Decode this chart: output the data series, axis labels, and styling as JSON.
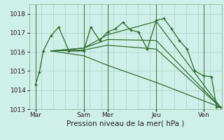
{
  "bg_color": "#cff0e8",
  "grid_color": "#b0d8cc",
  "line_color": "#2d6628",
  "xlabel": "Pression niveau de la mer( hPa )",
  "xlabel_fontsize": 7.5,
  "ylim": [
    1013.0,
    1018.5
  ],
  "yticks": [
    1013,
    1014,
    1015,
    1016,
    1017,
    1018
  ],
  "ytick_fontsize": 6.5,
  "xtick_fontsize": 6.5,
  "day_labels": [
    "Mar",
    "Sam",
    "Mer",
    "Jeu",
    "Ven"
  ],
  "day_positions": [
    0.0,
    0.375,
    0.56,
    0.94,
    1.31
  ],
  "vline_positions": [
    0.0,
    0.375,
    0.56,
    0.94,
    1.31
  ],
  "xlim": [
    -0.05,
    1.45
  ],
  "series_main": {
    "x": [
      0.0,
      0.03,
      0.06,
      0.12,
      0.18,
      0.26,
      0.375,
      0.43,
      0.5,
      0.56,
      0.62,
      0.68,
      0.74,
      0.8,
      0.87,
      0.94,
      1.0,
      1.06,
      1.12,
      1.18,
      1.24,
      1.31,
      1.37,
      1.41,
      1.44
    ],
    "y": [
      1014.3,
      1014.95,
      1016.05,
      1016.85,
      1017.3,
      1016.05,
      1016.05,
      1017.3,
      1016.6,
      1017.05,
      1017.2,
      1017.55,
      1017.15,
      1017.05,
      1016.15,
      1017.65,
      1017.75,
      1017.2,
      1016.6,
      1016.15,
      1015.0,
      1014.75,
      1014.7,
      1013.1,
      1013.1
    ]
  },
  "series_up": {
    "x": [
      0.12,
      0.375,
      0.56,
      0.94,
      1.44
    ],
    "y": [
      1016.05,
      1016.2,
      1016.9,
      1017.6,
      1013.1
    ]
  },
  "series_mid": {
    "x": [
      0.12,
      0.375,
      0.56,
      0.94,
      1.44
    ],
    "y": [
      1016.05,
      1016.2,
      1016.65,
      1016.6,
      1013.1
    ]
  },
  "series_flat": {
    "x": [
      0.12,
      0.375,
      0.56,
      0.94,
      1.44
    ],
    "y": [
      1016.05,
      1016.1,
      1016.35,
      1016.15,
      1013.1
    ]
  },
  "series_down": {
    "x": [
      0.12,
      0.375,
      0.56,
      0.94,
      1.44
    ],
    "y": [
      1016.05,
      1015.8,
      1015.3,
      1014.4,
      1013.1
    ]
  }
}
